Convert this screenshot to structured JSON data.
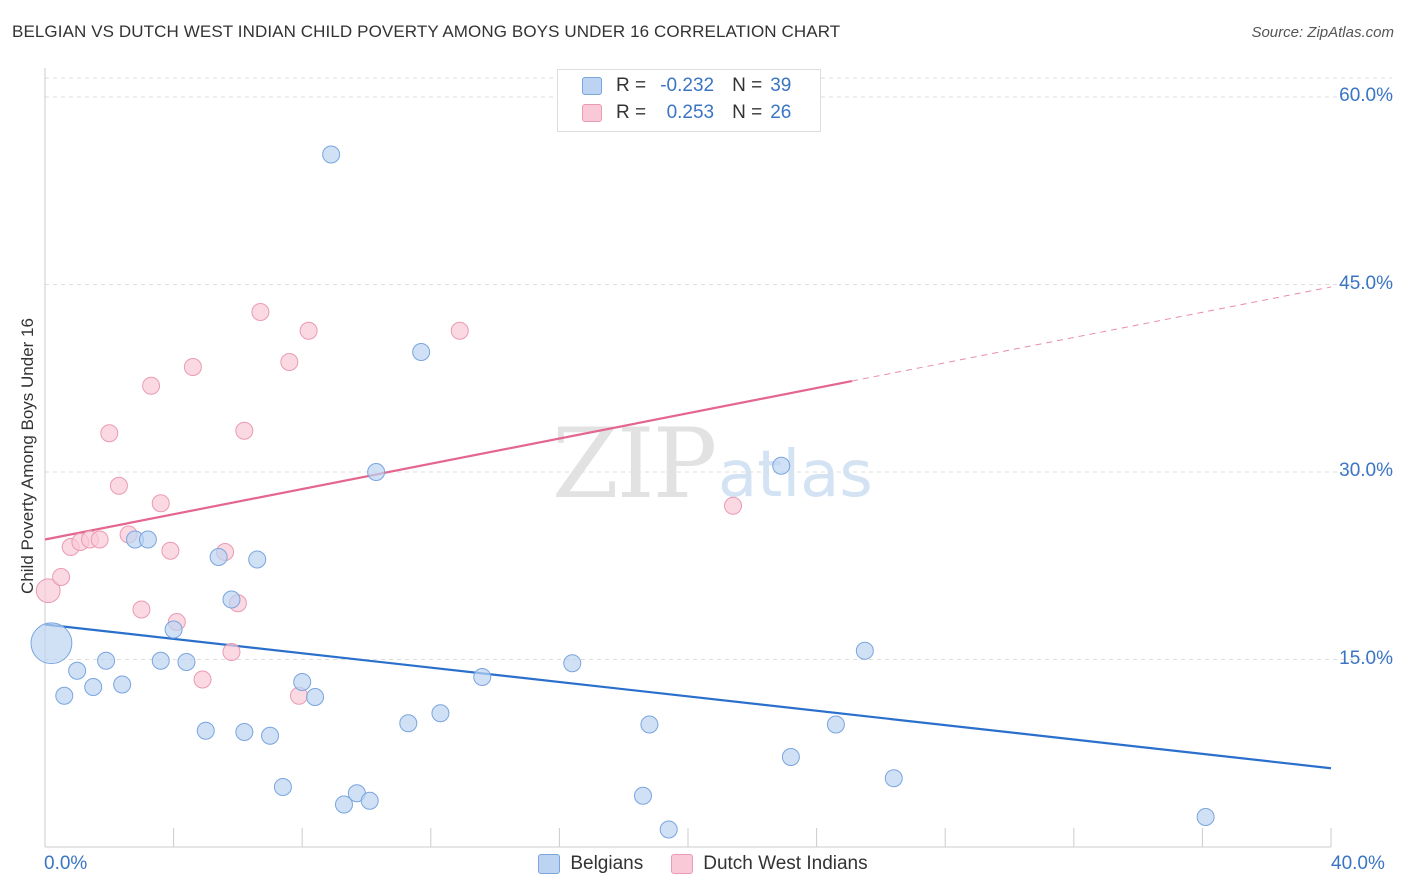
{
  "header": {
    "title": "BELGIAN VS DUTCH WEST INDIAN CHILD POVERTY AMONG BOYS UNDER 16 CORRELATION CHART",
    "source": "Source: ZipAtlas.com"
  },
  "legend": {
    "rows": [
      {
        "r_label": "R =",
        "r_value": "-0.232",
        "n_label": "N =",
        "n_value": "39"
      },
      {
        "r_label": "R =",
        "r_value": "0.253",
        "n_label": "N =",
        "n_value": "26"
      }
    ]
  },
  "watermark": {
    "zip": "ZIP",
    "atlas": "atlas"
  },
  "colors": {
    "belgians_fill": "#bcd4f2",
    "belgians_stroke": "#7aa5de",
    "belgians_line": "#2a6fcc",
    "dutch_fill": "#f9c9d7",
    "dutch_stroke": "#eb9ab3",
    "dutch_line": "#e4668e",
    "axis_text": "#3a75c4",
    "grid": "#dddddd"
  },
  "chart_data": {
    "type": "scatter",
    "title": "BELGIAN VS DUTCH WEST INDIAN CHILD POVERTY AMONG BOYS UNDER 16 CORRELATION CHART",
    "xlabel": "",
    "ylabel": "Child Poverty Among Boys Under 16",
    "xlim": [
      0,
      40
    ],
    "ylim": [
      0,
      60
    ],
    "x_tick_labels": [
      "0.0%",
      "40.0%"
    ],
    "y_ticks": [
      15,
      30,
      45,
      60
    ],
    "y_tick_labels": [
      "15.0%",
      "30.0%",
      "45.0%",
      "60.0%"
    ],
    "grid": true,
    "series": [
      {
        "name": "Belgians",
        "r": -0.232,
        "n": 39,
        "trend": {
          "x0": 0,
          "y0": 17.8,
          "x1": 40,
          "y1": 6.3,
          "solid_until": 40
        },
        "points": [
          [
            0.2,
            16.3,
            2.4
          ],
          [
            0.6,
            12.1,
            1
          ],
          [
            1.0,
            14.1,
            1
          ],
          [
            1.5,
            12.8,
            1
          ],
          [
            1.9,
            14.9,
            1
          ],
          [
            2.4,
            13.0,
            1
          ],
          [
            2.8,
            24.6,
            1
          ],
          [
            3.2,
            24.6,
            1
          ],
          [
            3.6,
            14.9,
            1
          ],
          [
            4.0,
            17.4,
            1
          ],
          [
            4.4,
            14.8,
            1
          ],
          [
            5.0,
            9.3,
            1
          ],
          [
            5.4,
            23.2,
            1
          ],
          [
            5.8,
            19.8,
            1
          ],
          [
            6.2,
            9.2,
            1
          ],
          [
            6.6,
            23.0,
            1
          ],
          [
            7.0,
            8.9,
            1
          ],
          [
            7.4,
            4.8,
            1
          ],
          [
            8.0,
            13.2,
            1
          ],
          [
            8.4,
            12.0,
            1
          ],
          [
            8.9,
            55.4,
            1
          ],
          [
            9.3,
            3.4,
            1
          ],
          [
            9.7,
            4.3,
            1
          ],
          [
            10.1,
            3.7,
            1
          ],
          [
            10.3,
            30.0,
            1
          ],
          [
            11.3,
            9.9,
            1
          ],
          [
            11.7,
            39.6,
            1
          ],
          [
            12.3,
            10.7,
            1
          ],
          [
            13.6,
            13.6,
            1
          ],
          [
            16.4,
            14.7,
            1
          ],
          [
            18.6,
            4.1,
            1
          ],
          [
            18.8,
            9.8,
            1
          ],
          [
            19.4,
            1.4,
            1
          ],
          [
            23.2,
            7.2,
            1
          ],
          [
            22.9,
            30.5,
            1
          ],
          [
            24.6,
            9.8,
            1
          ],
          [
            25.5,
            15.7,
            1
          ],
          [
            26.4,
            5.5,
            1
          ],
          [
            36.1,
            2.4,
            1
          ]
        ]
      },
      {
        "name": "Dutch West Indians",
        "r": 0.253,
        "n": 26,
        "trend": {
          "x0": 0,
          "y0": 24.6,
          "x1": 40,
          "y1": 44.8,
          "solid_until": 25.1
        },
        "points": [
          [
            0.1,
            20.5,
            1.4
          ],
          [
            0.5,
            21.6,
            1
          ],
          [
            0.8,
            24.0,
            1
          ],
          [
            1.1,
            24.4,
            1
          ],
          [
            1.4,
            24.6,
            1
          ],
          [
            1.7,
            24.6,
            1
          ],
          [
            2.0,
            33.1,
            1
          ],
          [
            2.3,
            28.9,
            1
          ],
          [
            2.6,
            25.0,
            1
          ],
          [
            3.0,
            19.0,
            1
          ],
          [
            3.3,
            36.9,
            1
          ],
          [
            3.6,
            27.5,
            1
          ],
          [
            3.9,
            23.7,
            1
          ],
          [
            4.1,
            18.0,
            1
          ],
          [
            4.6,
            38.4,
            1
          ],
          [
            4.9,
            13.4,
            1
          ],
          [
            5.6,
            23.6,
            1
          ],
          [
            5.8,
            15.6,
            1
          ],
          [
            6.0,
            19.5,
            1
          ],
          [
            6.2,
            33.3,
            1
          ],
          [
            6.7,
            42.8,
            1
          ],
          [
            7.6,
            38.8,
            1
          ],
          [
            7.9,
            12.1,
            1
          ],
          [
            8.2,
            41.3,
            1
          ],
          [
            12.9,
            41.3,
            1
          ],
          [
            21.4,
            27.3,
            1
          ]
        ]
      }
    ]
  }
}
